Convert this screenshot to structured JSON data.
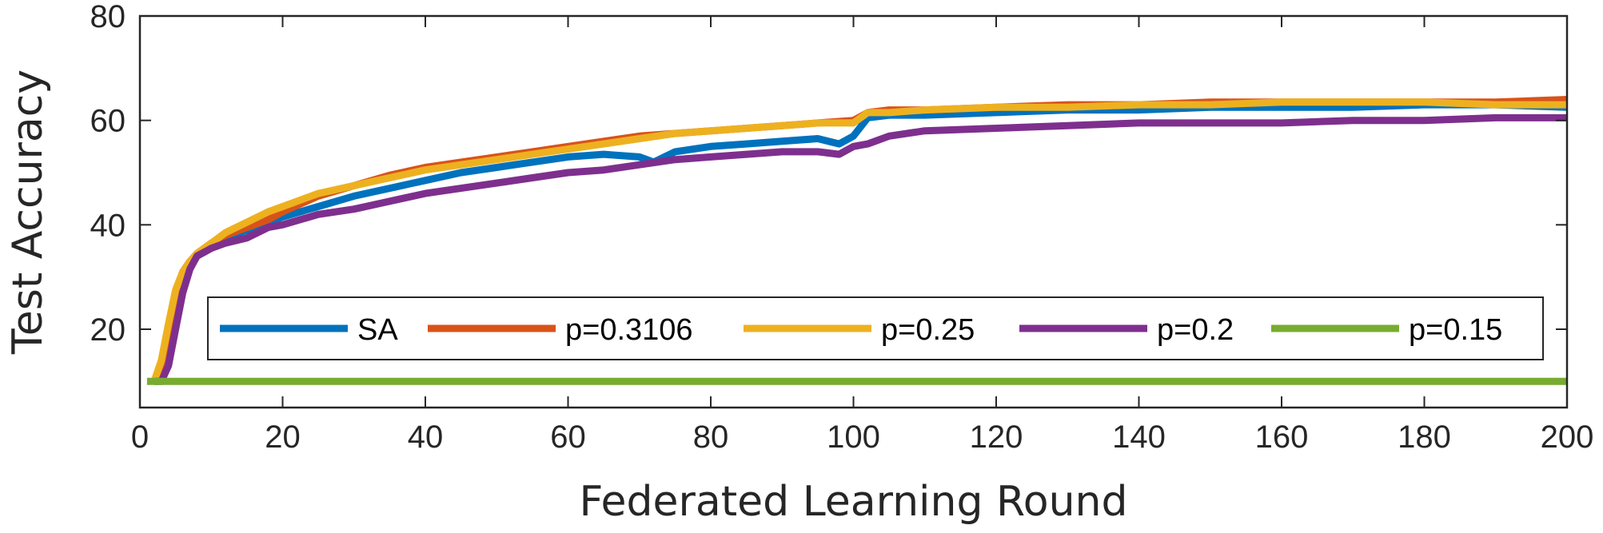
{
  "chart_data": {
    "type": "line",
    "title": "",
    "xlabel": "Federated Learning Round",
    "ylabel": "Test Accuracy",
    "xlim": [
      0,
      200
    ],
    "ylim": [
      5,
      80
    ],
    "xticks": [
      0,
      20,
      40,
      60,
      80,
      100,
      120,
      140,
      160,
      180,
      200
    ],
    "yticks": [
      20,
      40,
      60,
      80
    ],
    "grid": false,
    "legend_position": "bottom, horizontal",
    "series": [
      {
        "name": "SA",
        "color": "#0072BD",
        "x": [
          2,
          3,
          4,
          5,
          6,
          7,
          8,
          10,
          12,
          15,
          18,
          20,
          25,
          30,
          35,
          40,
          45,
          50,
          55,
          60,
          65,
          70,
          72,
          75,
          80,
          85,
          90,
          95,
          98,
          100,
          102,
          105,
          110,
          120,
          130,
          140,
          150,
          160,
          170,
          180,
          190,
          200
        ],
        "y": [
          10,
          12,
          18,
          26,
          30,
          32,
          34,
          36,
          37.5,
          39,
          40.5,
          41.5,
          43.5,
          45.5,
          47,
          48.5,
          50,
          51,
          52,
          53,
          53.5,
          53,
          52,
          54,
          55,
          55.5,
          56,
          56.5,
          55.5,
          57,
          60.5,
          61,
          61,
          61.5,
          62,
          62,
          62.5,
          62.5,
          62.5,
          63,
          63,
          62.5
        ]
      },
      {
        "name": "p=0.3106",
        "color": "#D95319",
        "x": [
          2,
          3,
          4,
          5,
          6,
          7,
          8,
          10,
          12,
          15,
          18,
          20,
          25,
          30,
          35,
          40,
          45,
          50,
          55,
          60,
          65,
          70,
          75,
          80,
          85,
          90,
          95,
          100,
          102,
          105,
          110,
          120,
          130,
          140,
          150,
          160,
          170,
          180,
          190,
          200
        ],
        "y": [
          10,
          13,
          20,
          27,
          31,
          33,
          34.5,
          36.5,
          38,
          39.5,
          41,
          42.5,
          45.5,
          47.5,
          49.5,
          51,
          52,
          53,
          54,
          55,
          56,
          57,
          57.5,
          58,
          58.5,
          59,
          59.5,
          60,
          61.5,
          62,
          62,
          62.5,
          63,
          63,
          63.5,
          63.5,
          63.5,
          63.5,
          63.5,
          64
        ]
      },
      {
        "name": "p=0.25",
        "color": "#EDB120",
        "x": [
          2,
          3,
          4,
          5,
          6,
          7,
          8,
          10,
          12,
          15,
          18,
          20,
          25,
          30,
          35,
          40,
          45,
          50,
          55,
          60,
          65,
          70,
          75,
          80,
          85,
          90,
          95,
          100,
          102,
          105,
          110,
          120,
          130,
          140,
          150,
          160,
          170,
          180,
          190,
          200
        ],
        "y": [
          10,
          14,
          21,
          27.5,
          31,
          33,
          34.5,
          36.5,
          38.5,
          40.5,
          42.5,
          43.5,
          46,
          47.5,
          49,
          50.5,
          51.5,
          52.5,
          53.5,
          54.5,
          55.5,
          56.5,
          57.5,
          58,
          58.5,
          59,
          59.5,
          59.5,
          61.5,
          61.5,
          62,
          62.5,
          62.5,
          63,
          63,
          63.5,
          63.5,
          63.5,
          63,
          63
        ]
      },
      {
        "name": "p=0.2",
        "color": "#7E2F8E",
        "x": [
          2,
          3,
          4,
          5,
          6,
          7,
          8,
          10,
          12,
          15,
          18,
          20,
          25,
          30,
          35,
          40,
          45,
          50,
          55,
          60,
          65,
          70,
          75,
          80,
          85,
          90,
          95,
          98,
          100,
          102,
          105,
          110,
          120,
          130,
          140,
          150,
          160,
          170,
          180,
          190,
          200
        ],
        "y": [
          10,
          10,
          13,
          20,
          27,
          31.5,
          34,
          35.5,
          36.5,
          37.5,
          39.5,
          40,
          42,
          43,
          44.5,
          46,
          47,
          48,
          49,
          50,
          50.5,
          51.5,
          52.5,
          53,
          53.5,
          54,
          54,
          53.5,
          55,
          55.5,
          57,
          58,
          58.5,
          59,
          59.5,
          59.5,
          59.5,
          60,
          60,
          60.5,
          60.5
        ]
      },
      {
        "name": "p=0.15",
        "color": "#77AC30",
        "x": [
          1,
          200
        ],
        "y": [
          10,
          10
        ]
      }
    ]
  }
}
